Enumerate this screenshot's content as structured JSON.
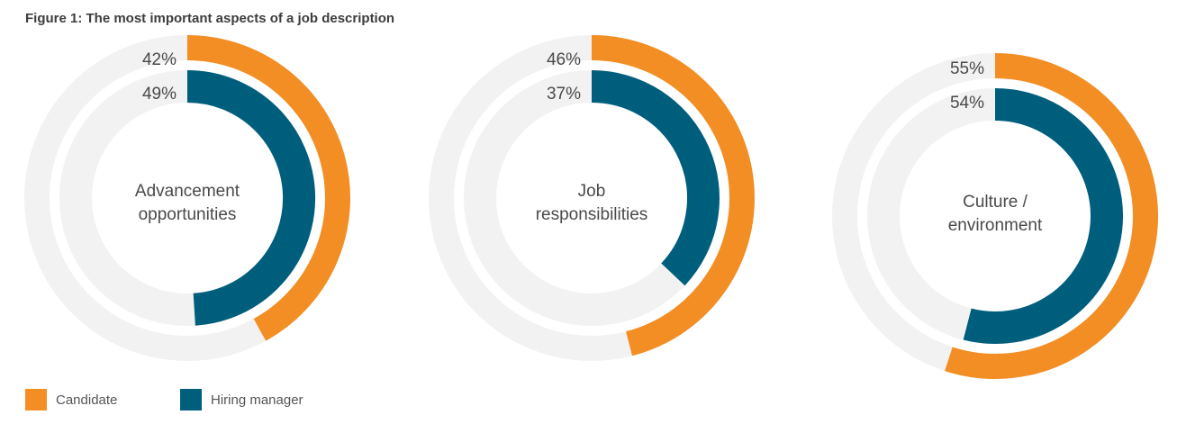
{
  "title": "Figure 1: The most important aspects of a job description",
  "colors": {
    "candidate": "#F28E24",
    "hiring_manager": "#005E7D",
    "track": "#F2F2F2",
    "text": "#4a4a4a"
  },
  "legend": [
    {
      "name": "Candidate",
      "color": "#F28E24"
    },
    {
      "name": "Hiring manager",
      "color": "#005E7D"
    }
  ],
  "chart_data": [
    {
      "type": "donut",
      "center_label": [
        "Advancement",
        "opportunities"
      ],
      "series": [
        {
          "name": "Candidate",
          "value": 42,
          "label": "42%"
        },
        {
          "name": "Hiring manager",
          "value": 49,
          "label": "49%"
        }
      ]
    },
    {
      "type": "donut",
      "center_label": [
        "Job",
        "responsibilities"
      ],
      "series": [
        {
          "name": "Candidate",
          "value": 46,
          "label": "46%"
        },
        {
          "name": "Hiring manager",
          "value": 37,
          "label": "37%"
        }
      ]
    },
    {
      "type": "donut",
      "center_label": [
        "Culture /",
        "environment"
      ],
      "series": [
        {
          "name": "Candidate",
          "value": 55,
          "label": "55%"
        },
        {
          "name": "Hiring manager",
          "value": 54,
          "label": "54%"
        }
      ]
    }
  ]
}
